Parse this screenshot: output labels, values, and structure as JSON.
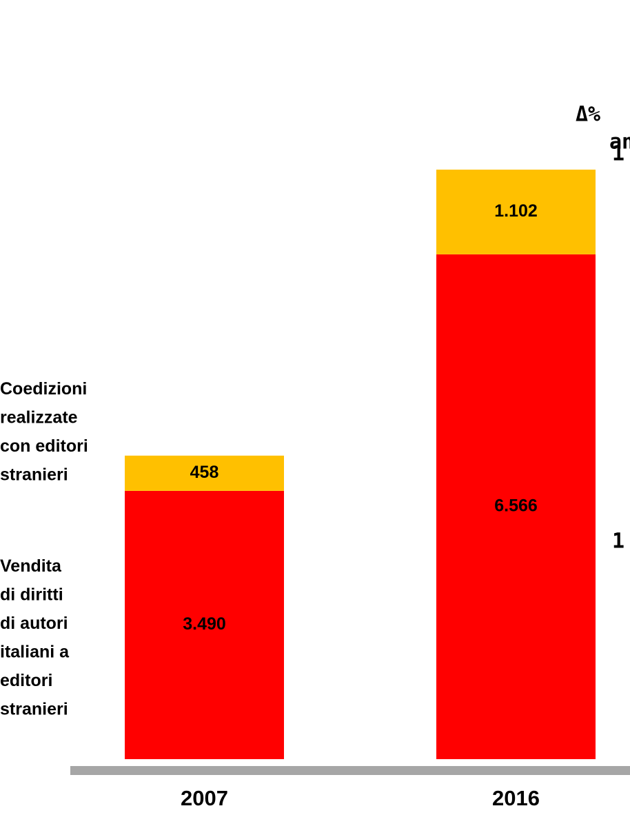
{
  "chart_data": {
    "type": "stacked_bar",
    "categories": [
      "2007",
      "2016"
    ],
    "series": [
      {
        "name": "Vendita\ndi diritti\ndi autori\nitaliani a\neditori\nstranieri",
        "color": "#ff0000",
        "values": [
          3490,
          6566
        ],
        "value_labels": [
          "3.490",
          "6.566"
        ]
      },
      {
        "name": "Coedizioni\nrealizzate\ncon editori\nstranieri",
        "color": "#ffc000",
        "values": [
          458,
          1102
        ],
        "value_labels": [
          "458",
          "1.102"
        ]
      }
    ],
    "ylim": [
      0,
      8000
    ],
    "annotations": [
      "Δ%",
      "an",
      "1",
      "1"
    ]
  }
}
